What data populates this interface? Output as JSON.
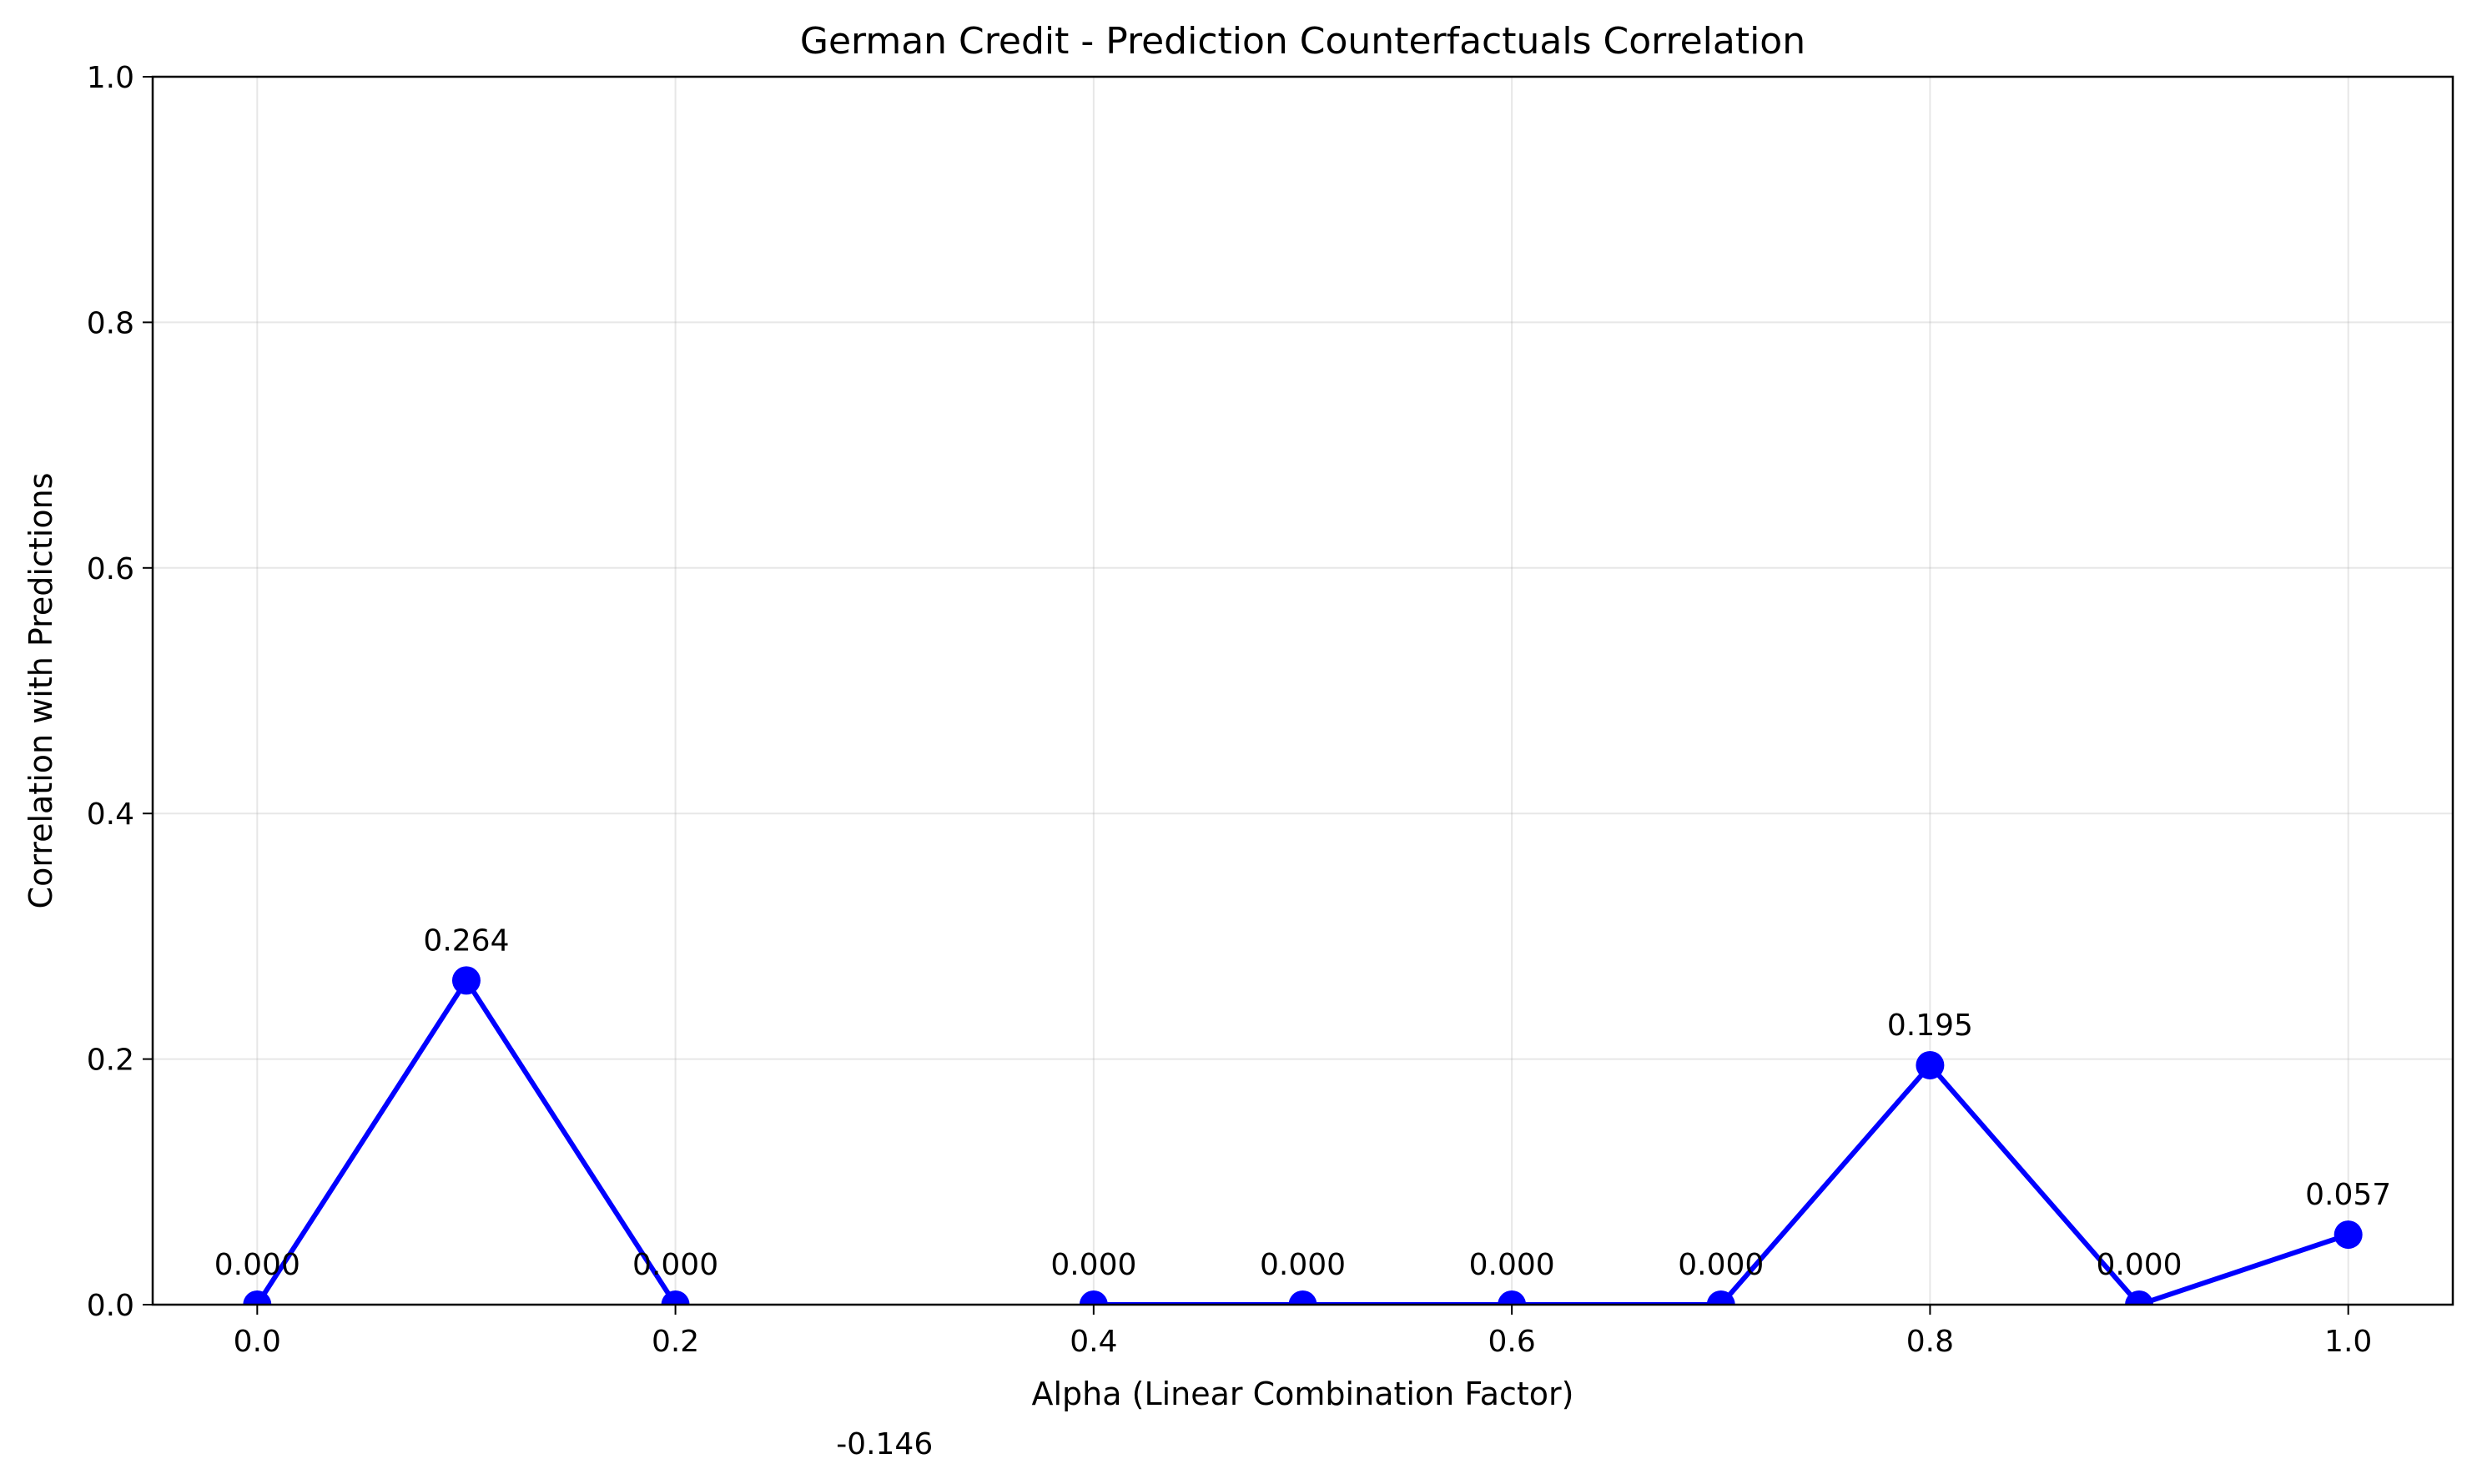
{
  "chart_data": {
    "type": "line",
    "title": "German Credit - Prediction Counterfactuals Correlation",
    "xlabel": "Alpha (Linear Combination Factor)",
    "ylabel": "Correlation with Predictions",
    "xlim": [
      -0.05,
      1.05
    ],
    "ylim": [
      0.0,
      1.0
    ],
    "x_ticks": [
      "0.0",
      "0.2",
      "0.4",
      "0.6",
      "0.8",
      "1.0"
    ],
    "y_ticks": [
      "0.0",
      "0.2",
      "0.4",
      "0.6",
      "0.8",
      "1.0"
    ],
    "grid": true,
    "color": "#0000ff",
    "series": [
      {
        "x": [
          0.0,
          0.1,
          0.2,
          0.3,
          0.4,
          0.5,
          0.6,
          0.7,
          0.8,
          0.9,
          1.0
        ],
        "y": [
          0.0,
          0.264,
          0.0,
          -0.146,
          0.0,
          0.0,
          0.0,
          0.0,
          0.195,
          0.0,
          0.057
        ],
        "labels": [
          "0.000",
          "0.264",
          "0.000",
          "-0.146",
          "0.000",
          "0.000",
          "0.000",
          "0.000",
          "0.195",
          "0.000",
          "0.057"
        ]
      }
    ]
  }
}
